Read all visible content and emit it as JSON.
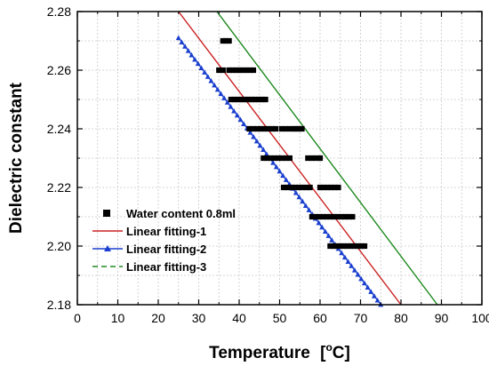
{
  "chart_data": {
    "type": "scatter",
    "xlabel": "Temperature",
    "xlabel_unit": "[°C]",
    "ylabel": "Dielectric constant",
    "xlim": [
      0,
      100
    ],
    "ylim": [
      2.18,
      2.28
    ],
    "x_ticks": [
      "0",
      "10",
      "20",
      "30",
      "40",
      "50",
      "60",
      "70",
      "80",
      "90",
      "100"
    ],
    "y_ticks": [
      "2.18",
      "2.20",
      "2.22",
      "2.24",
      "2.26",
      "2.28"
    ],
    "grid": true,
    "legend_position": "bottom-left",
    "series": [
      {
        "name": "Water content 0.8ml",
        "kind": "scatter",
        "marker": "square",
        "color": "#000000",
        "segments": [
          {
            "y": 2.27,
            "x": [
              36,
              37.5
            ]
          },
          {
            "y": 2.26,
            "x": [
              35,
              36
            ],
            "x2": [
              37.5,
              43.5
            ]
          },
          {
            "y": 2.25,
            "x": [
              38,
              46.5
            ]
          },
          {
            "y": 2.24,
            "x": [
              42.5,
              49
            ],
            "x2": [
              50.5,
              51.5
            ],
            "x3": [
              52.5,
              53.5
            ],
            "x4": [
              54,
              55.5
            ]
          },
          {
            "y": 2.23,
            "x": [
              46,
              52.5
            ],
            "x2": [
              57,
              60
            ]
          },
          {
            "y": 2.22,
            "x": [
              51,
              57.5
            ],
            "x2": [
              60,
              64.5
            ]
          },
          {
            "y": 2.21,
            "x": [
              58,
              68
            ]
          },
          {
            "y": 2.2,
            "x": [
              62.5,
              71
            ]
          }
        ]
      },
      {
        "name": "Linear fitting-1",
        "kind": "line",
        "color": "#cc2222",
        "x": [
          25,
          80
        ],
        "y": [
          2.28,
          2.18
        ]
      },
      {
        "name": "Linear fitting-2",
        "kind": "line-markers",
        "marker": "triangle",
        "color": "#1a3fcf",
        "x": [
          25,
          75
        ],
        "y": [
          2.271,
          2.18
        ]
      },
      {
        "name": "Linear fitting-3",
        "kind": "line",
        "color": "#1e8a1e",
        "dash_in_legend": true,
        "x": [
          34.5,
          89
        ],
        "y": [
          2.28,
          2.18
        ]
      }
    ]
  }
}
